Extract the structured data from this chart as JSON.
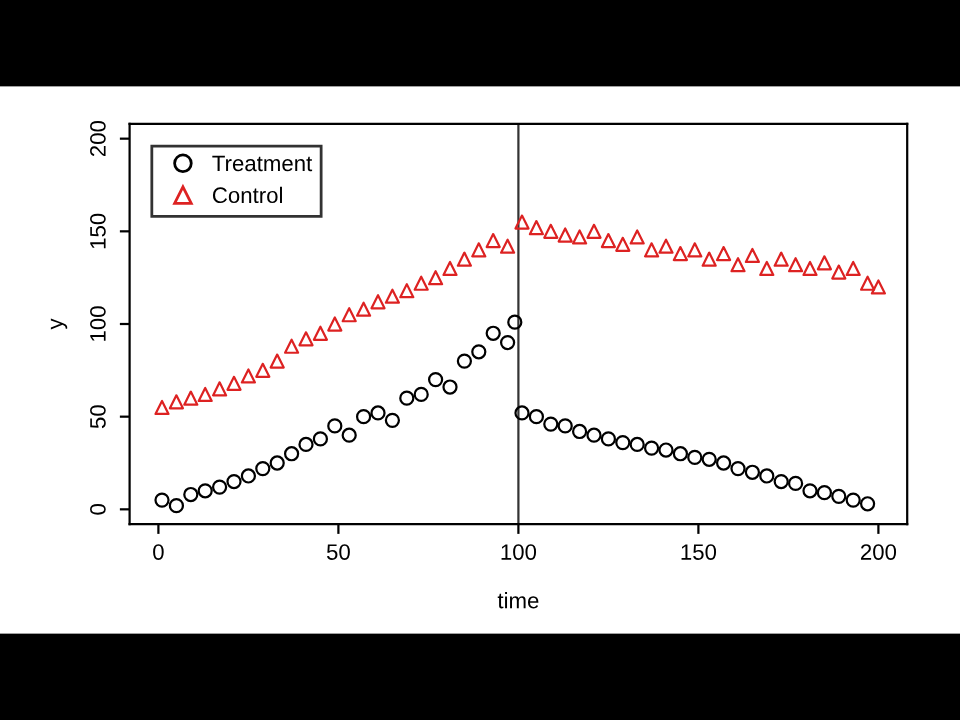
{
  "chart_data": {
    "type": "scatter",
    "xlabel": "time",
    "ylabel": "y",
    "xlim": [
      -8,
      208
    ],
    "ylim": [
      -8,
      208
    ],
    "xticks": [
      0,
      50,
      100,
      150,
      200
    ],
    "yticks": [
      0,
      50,
      100,
      150,
      200
    ],
    "grid": false,
    "legend": "top left",
    "ref_lines": [
      {
        "axis": "x",
        "value": 100,
        "label": null,
        "color": "#333333"
      }
    ],
    "series": [
      {
        "name": "Treatment",
        "color": "#000000",
        "marker": "circle",
        "x": [
          1,
          5,
          9,
          13,
          17,
          21,
          25,
          29,
          33,
          37,
          41,
          45,
          49,
          53,
          57,
          61,
          65,
          69,
          73,
          77,
          81,
          85,
          89,
          93,
          97,
          99,
          101,
          105,
          109,
          113,
          117,
          121,
          125,
          129,
          133,
          137,
          141,
          145,
          149,
          153,
          157,
          161,
          165,
          169,
          173,
          177,
          181,
          185,
          189,
          193,
          197
        ],
        "values": [
          5,
          2,
          8,
          10,
          12,
          15,
          18,
          22,
          25,
          30,
          35,
          38,
          45,
          40,
          50,
          52,
          48,
          60,
          62,
          70,
          66,
          80,
          85,
          95,
          90,
          101,
          52,
          50,
          46,
          45,
          42,
          40,
          38,
          36,
          35,
          33,
          32,
          30,
          28,
          27,
          25,
          22,
          20,
          18,
          15,
          14,
          10,
          9,
          7,
          5,
          3
        ]
      },
      {
        "name": "Control",
        "color": "#dd2222",
        "marker": "triangle",
        "x": [
          1,
          5,
          9,
          13,
          17,
          21,
          25,
          29,
          33,
          37,
          41,
          45,
          49,
          53,
          57,
          61,
          65,
          69,
          73,
          77,
          81,
          85,
          89,
          93,
          97,
          101,
          105,
          109,
          113,
          117,
          121,
          125,
          129,
          133,
          137,
          141,
          145,
          149,
          153,
          157,
          161,
          165,
          169,
          173,
          177,
          181,
          185,
          189,
          193,
          197,
          200
        ],
        "values": [
          55,
          58,
          60,
          62,
          65,
          68,
          72,
          75,
          80,
          88,
          92,
          95,
          100,
          105,
          108,
          112,
          115,
          118,
          122,
          125,
          130,
          135,
          140,
          145,
          142,
          155,
          152,
          150,
          148,
          147,
          150,
          145,
          143,
          147,
          140,
          142,
          138,
          140,
          135,
          138,
          132,
          137,
          130,
          135,
          132,
          130,
          133,
          128,
          130,
          122,
          120
        ]
      }
    ]
  }
}
